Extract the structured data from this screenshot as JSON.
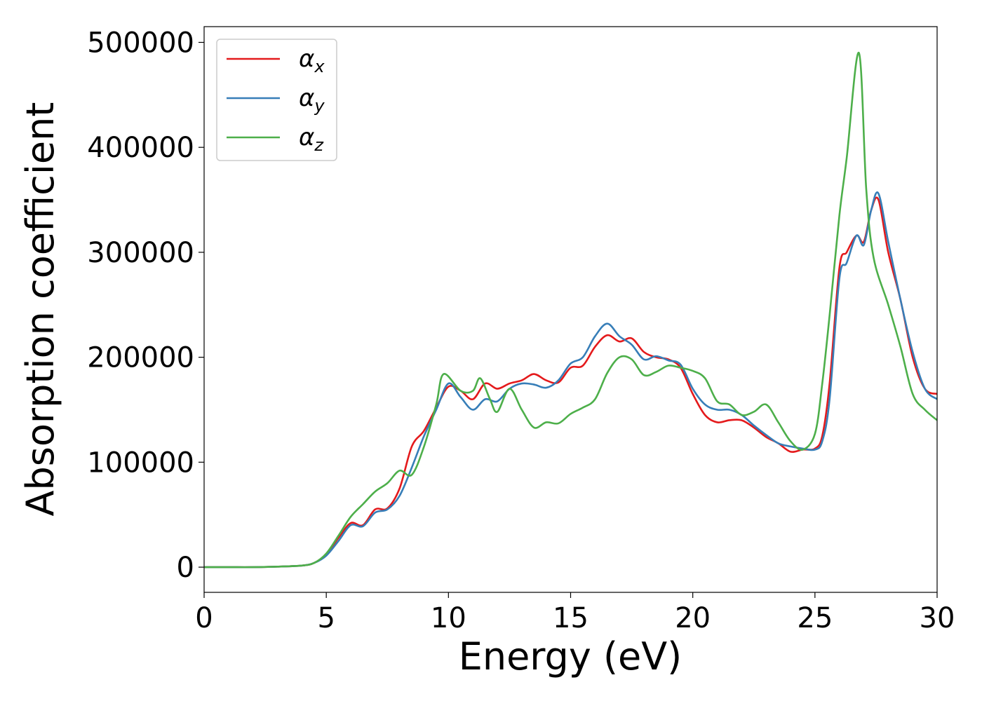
{
  "chart_data": {
    "type": "line",
    "title": "",
    "xlabel": "Energy (eV)",
    "ylabel": "Absorption coefficient",
    "xlim": [
      0,
      30
    ],
    "ylim": [
      -24000,
      515000
    ],
    "xticks": [
      0,
      5,
      10,
      15,
      20,
      25,
      30
    ],
    "yticks": [
      0,
      100000,
      200000,
      300000,
      400000,
      500000
    ],
    "grid": false,
    "legend_position": "top-left",
    "series": [
      {
        "name": "αx",
        "name_base": "α",
        "name_sub": "x",
        "color": "#e41a1c",
        "x": [
          0,
          1,
          2,
          3,
          4,
          4.5,
          5,
          5.5,
          6,
          6.5,
          7,
          7.5,
          8,
          8.5,
          9,
          9.5,
          10,
          10.5,
          11,
          11.5,
          12,
          12.5,
          13,
          13.5,
          14,
          14.5,
          15,
          15.5,
          16,
          16.5,
          17,
          17.5,
          18,
          18.5,
          19,
          19.5,
          20,
          20.5,
          21,
          21.5,
          22,
          22.5,
          23,
          23.5,
          24,
          24.5,
          25,
          25.3,
          25.6,
          26,
          26.3,
          26.7,
          27,
          27.3,
          27.6,
          28,
          28.5,
          29,
          29.5,
          30
        ],
        "y": [
          0,
          0,
          0,
          500,
          1500,
          4000,
          12000,
          28000,
          42000,
          40000,
          55000,
          56000,
          75000,
          115000,
          130000,
          152000,
          172000,
          168000,
          160000,
          175000,
          170000,
          175000,
          178000,
          184000,
          178000,
          176000,
          190000,
          192000,
          210000,
          221000,
          215000,
          218000,
          205000,
          200000,
          198000,
          190000,
          165000,
          145000,
          138000,
          140000,
          140000,
          133000,
          124000,
          118000,
          110000,
          112000,
          113000,
          125000,
          175000,
          285000,
          300000,
          316000,
          310000,
          340000,
          350000,
          300000,
          255000,
          200000,
          170000,
          165000
        ]
      },
      {
        "name": "αy",
        "name_base": "α",
        "name_sub": "y",
        "color": "#377eb8",
        "x": [
          0,
          1,
          2,
          3,
          4,
          4.5,
          5,
          5.5,
          6,
          6.5,
          7,
          7.5,
          8,
          8.5,
          9,
          9.5,
          10,
          10.5,
          11,
          11.5,
          12,
          12.5,
          13,
          13.5,
          14,
          14.5,
          15,
          15.5,
          16,
          16.5,
          17,
          17.5,
          18,
          18.5,
          19,
          19.5,
          20,
          20.5,
          21,
          21.5,
          22,
          22.5,
          23,
          23.5,
          24,
          24.5,
          25,
          25.3,
          25.6,
          26,
          26.3,
          26.7,
          27,
          27.3,
          27.6,
          28,
          28.5,
          29,
          29.5,
          30
        ],
        "y": [
          0,
          0,
          0,
          500,
          1500,
          4000,
          11000,
          25000,
          40000,
          39000,
          52000,
          55000,
          68000,
          95000,
          125000,
          150000,
          175000,
          162000,
          150000,
          160000,
          158000,
          170000,
          175000,
          174000,
          171000,
          178000,
          194000,
          200000,
          220000,
          232000,
          220000,
          212000,
          198000,
          201000,
          197000,
          193000,
          170000,
          155000,
          150000,
          150000,
          145000,
          135000,
          126000,
          118000,
          115000,
          113000,
          112000,
          120000,
          160000,
          275000,
          290000,
          316000,
          307000,
          340000,
          356000,
          310000,
          255000,
          205000,
          170000,
          160000
        ]
      },
      {
        "name": "αz",
        "name_base": "α",
        "name_sub": "z",
        "color": "#4daf4a",
        "x": [
          0,
          1,
          2,
          3,
          4,
          4.5,
          5,
          5.5,
          6,
          6.5,
          7,
          7.5,
          8,
          8.5,
          9,
          9.5,
          9.8,
          10.5,
          11,
          11.3,
          11.7,
          12,
          12.5,
          13,
          13.5,
          14,
          14.5,
          15,
          15.5,
          16,
          16.5,
          17,
          17.5,
          18,
          18.5,
          19,
          19.5,
          20,
          20.5,
          21,
          21.5,
          22,
          22.5,
          23,
          23.5,
          24,
          24.5,
          25,
          25.3,
          25.6,
          26,
          26.3,
          26.8,
          27.1,
          27.4,
          28,
          28.5,
          29,
          29.5,
          30
        ],
        "y": [
          0,
          0,
          0,
          500,
          1500,
          4000,
          13000,
          30000,
          48000,
          60000,
          72000,
          80000,
          92000,
          88000,
          115000,
          155000,
          184000,
          168000,
          168000,
          180000,
          160000,
          148000,
          170000,
          150000,
          133000,
          138000,
          137000,
          146000,
          152000,
          160000,
          185000,
          200000,
          198000,
          183000,
          186000,
          192000,
          190000,
          187000,
          180000,
          158000,
          155000,
          145000,
          148000,
          155000,
          138000,
          120000,
          112000,
          127000,
          175000,
          240000,
          335000,
          390000,
          490000,
          360000,
          295000,
          250000,
          210000,
          165000,
          150000,
          140000
        ]
      }
    ]
  }
}
